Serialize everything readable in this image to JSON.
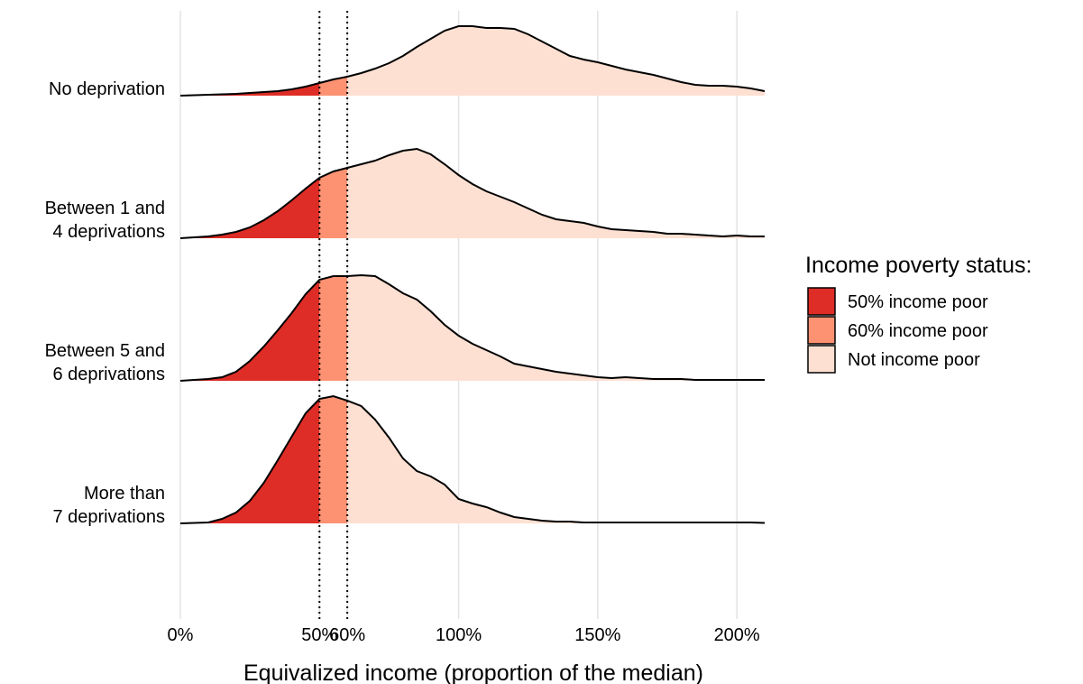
{
  "chart_data": {
    "type": "ridgeline",
    "x_label": "Equivalized income (proportion of the median)",
    "categories": [
      [
        "No deprivation"
      ],
      [
        "Between 1 and",
        "4 deprivations"
      ],
      [
        "Between 5 and",
        "6 deprivations"
      ],
      [
        "More than",
        "7 deprivations"
      ]
    ],
    "xlim": [
      0,
      210
    ],
    "xticks": [
      {
        "value": 0,
        "label": "0%"
      },
      {
        "value": 50,
        "label": "50%"
      },
      {
        "value": 60,
        "label": "60%"
      },
      {
        "value": 100,
        "label": "100%"
      },
      {
        "value": 150,
        "label": "150%"
      },
      {
        "value": 200,
        "label": "200%"
      }
    ],
    "grid": true,
    "thresholds": [
      50,
      60
    ],
    "legend_title": "Income poverty status:",
    "fill_groups": [
      {
        "name": "50% income poor",
        "color": "#de2d26"
      },
      {
        "name": "60% income poor",
        "color": "#fc9272"
      },
      {
        "name": "Not income poor",
        "color": "#fee0d2"
      }
    ],
    "x": [
      0,
      5,
      10,
      15,
      20,
      25,
      30,
      35,
      40,
      45,
      50,
      55,
      60,
      65,
      70,
      75,
      80,
      85,
      90,
      95,
      100,
      105,
      110,
      115,
      120,
      125,
      130,
      135,
      140,
      145,
      150,
      155,
      160,
      165,
      170,
      175,
      180,
      185,
      190,
      195,
      200,
      205,
      210
    ],
    "series": [
      {
        "values": [
          0,
          0.5,
          1,
          1.5,
          2,
          3,
          4,
          5,
          7,
          10,
          14,
          18,
          21,
          25,
          30,
          36,
          44,
          54,
          63,
          72,
          77,
          77,
          75,
          75,
          74,
          68,
          60,
          52,
          44,
          40,
          37,
          33,
          29,
          26,
          23,
          19,
          15,
          12,
          11,
          11,
          10,
          8,
          5
        ]
      },
      {
        "values": [
          0,
          1,
          2,
          4,
          7,
          12,
          20,
          30,
          42,
          55,
          67,
          74,
          78,
          82,
          86,
          92,
          97,
          99,
          93,
          82,
          70,
          60,
          52,
          46,
          40,
          33,
          26,
          21,
          19,
          17,
          13,
          10,
          9,
          8,
          7,
          5,
          5,
          4,
          3,
          2,
          3,
          2,
          2
        ]
      },
      {
        "values": [
          0,
          1,
          2,
          4,
          10,
          22,
          38,
          56,
          75,
          96,
          112,
          116,
          116,
          117,
          116,
          107,
          97,
          90,
          77,
          62,
          50,
          41,
          34,
          27,
          19,
          16,
          13,
          10,
          8,
          6,
          4,
          3,
          4,
          3,
          2,
          2,
          2,
          1,
          1,
          1,
          1,
          1,
          1
        ]
      },
      {
        "values": [
          0,
          0.5,
          1,
          5,
          12,
          25,
          45,
          70,
          96,
          122,
          138,
          141,
          136,
          130,
          115,
          95,
          72,
          58,
          52,
          43,
          27,
          22,
          18,
          12,
          7,
          5,
          3,
          2,
          2,
          1,
          1,
          1,
          1,
          1,
          1,
          1,
          1,
          1,
          1,
          1,
          1,
          1,
          0.5
        ]
      }
    ]
  }
}
